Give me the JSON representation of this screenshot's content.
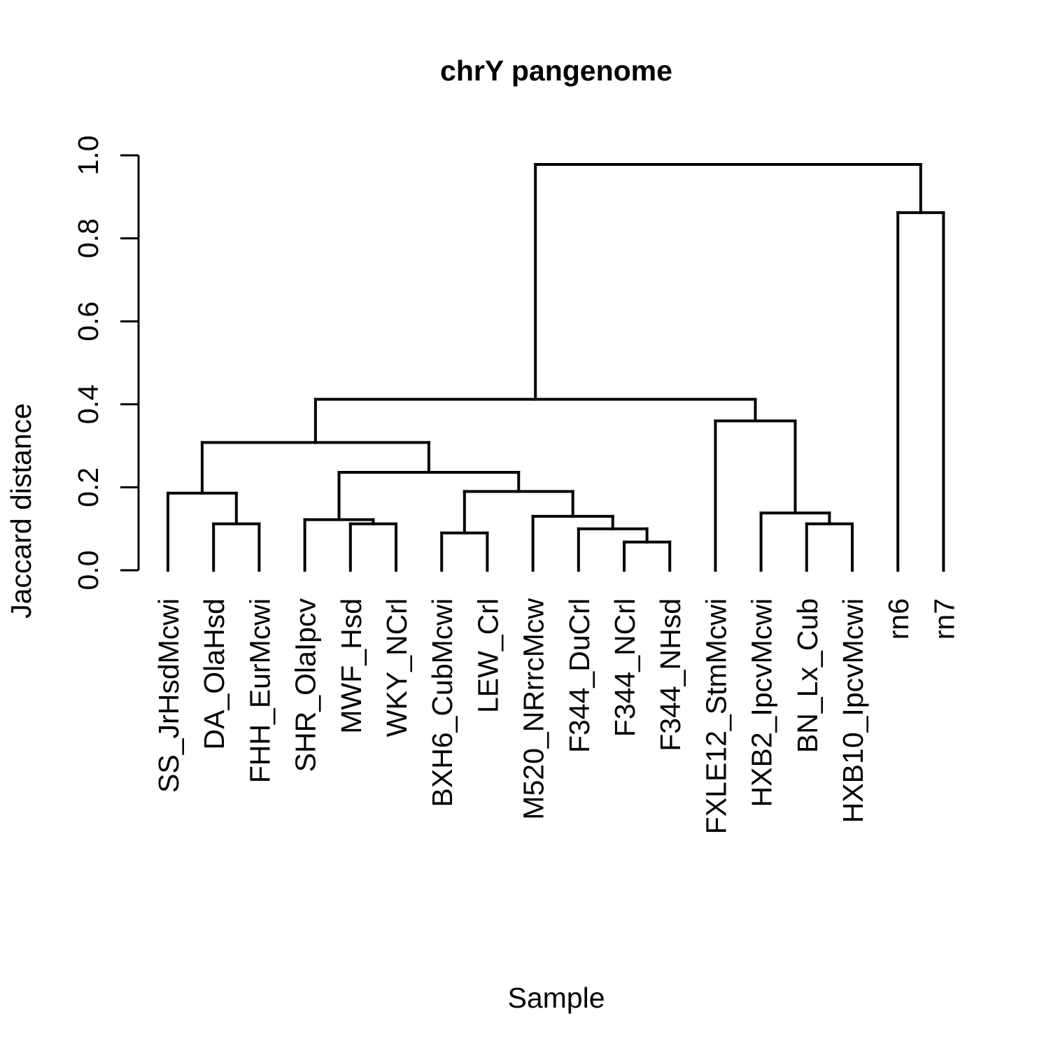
{
  "chart_data": {
    "type": "dendrogram",
    "title": "chrY pangenome",
    "xlabel": "Sample",
    "ylabel": "Jaccard distance",
    "ylim": [
      0,
      1.0
    ],
    "y_ticks": [
      "0.0",
      "0.2",
      "0.4",
      "0.6",
      "0.8",
      "1.0"
    ],
    "y_tick_values": [
      0,
      0.2,
      0.4,
      0.6,
      0.8,
      1.0
    ],
    "leaves": [
      "SS_JrHsdMcwi",
      "DA_OlaHsd",
      "FHH_EurMcwi",
      "SHR_OlaIpcv",
      "MWF_Hsd",
      "WKY_NCrl",
      "BXH6_CubMcwi",
      "LEW_Crl",
      "M520_NRrrcMcw",
      "F344_DuCrl",
      "F344_NCrl",
      "F344_NHsd",
      "FXLE12_StmMcwi",
      "HXB2_IpcvMcwi",
      "BN_Lx_Cub",
      "HXB10_IpcvMcwi",
      "rn6",
      "rn7"
    ],
    "merges": [
      {
        "left": 12,
        "right": 11,
        "height": 0.068
      },
      {
        "left": 5,
        "right": 6,
        "height": 0.09
      },
      {
        "left": 10,
        "right": -1,
        "height": 0.1
      },
      {
        "left": 5,
        "right": 6,
        "height": 0.112
      },
      {
        "left": 16,
        "right": 15,
        "height": 0.112
      },
      {
        "left": 4,
        "right": -4,
        "height": 0.122
      },
      {
        "left": 9,
        "right": -3,
        "height": 0.13
      },
      {
        "left": 14,
        "right": -5,
        "height": 0.138
      },
      {
        "left": 1,
        "right": -6,
        "height": 0.186
      },
      {
        "left": -2,
        "right": -7,
        "height": 0.19
      },
      {
        "left": -6,
        "right": -10,
        "height": 0.236
      },
      {
        "left": -9,
        "right": -11,
        "height": 0.308
      },
      {
        "left": 13,
        "right": -8,
        "height": 0.36
      },
      {
        "left": -12,
        "right": -13,
        "height": 0.412
      },
      {
        "left": 17,
        "right": 18,
        "height": 0.862
      },
      {
        "left": -14,
        "right": -15,
        "height": 0.978
      }
    ],
    "tree": {
      "h": 0.978,
      "c": [
        {
          "h": 0.412,
          "c": [
            {
              "h": 0.308,
              "c": [
                {
                  "h": 0.186,
                  "c": [
                    {
                      "leaf": 0
                    },
                    {
                      "h": 0.112,
                      "c": [
                        {
                          "leaf": 1
                        },
                        {
                          "leaf": 2
                        }
                      ]
                    }
                  ]
                },
                {
                  "h": 0.236,
                  "c": [
                    {
                      "h": 0.122,
                      "c": [
                        {
                          "leaf": 3
                        },
                        {
                          "h": 0.112,
                          "c": [
                            {
                              "leaf": 4
                            },
                            {
                              "leaf": 5
                            }
                          ]
                        }
                      ]
                    },
                    {
                      "h": 0.19,
                      "c": [
                        {
                          "h": 0.09,
                          "c": [
                            {
                              "leaf": 6
                            },
                            {
                              "leaf": 7
                            }
                          ]
                        },
                        {
                          "h": 0.13,
                          "c": [
                            {
                              "leaf": 8
                            },
                            {
                              "h": 0.1,
                              "c": [
                                {
                                  "leaf": 9
                                },
                                {
                                  "h": 0.068,
                                  "c": [
                                    {
                                      "leaf": 10
                                    },
                                    {
                                      "leaf": 11
                                    }
                                  ]
                                }
                              ]
                            }
                          ]
                        }
                      ]
                    }
                  ]
                }
              ]
            },
            {
              "h": 0.36,
              "c": [
                {
                  "leaf": 12
                },
                {
                  "h": 0.138,
                  "c": [
                    {
                      "leaf": 13
                    },
                    {
                      "h": 0.112,
                      "c": [
                        {
                          "leaf": 14
                        },
                        {
                          "leaf": 15
                        }
                      ]
                    }
                  ]
                }
              ]
            }
          ]
        },
        {
          "h": 0.862,
          "c": [
            {
              "leaf": 16
            },
            {
              "leaf": 17
            }
          ]
        }
      ]
    }
  }
}
